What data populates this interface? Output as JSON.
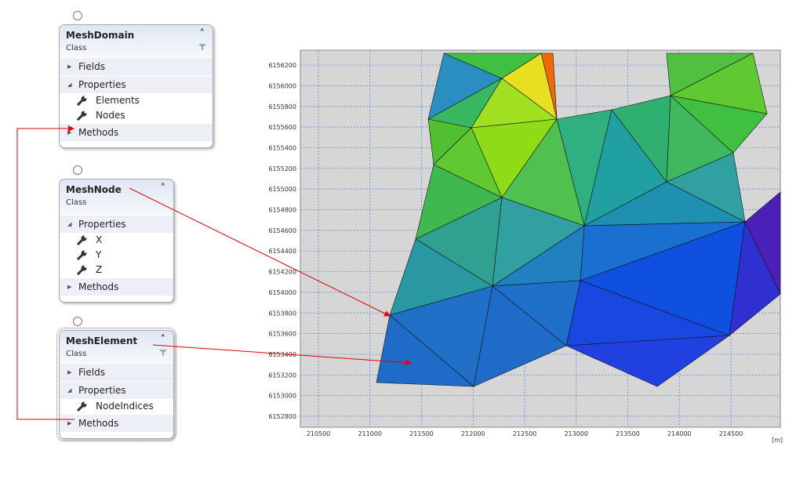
{
  "classes": [
    {
      "name": "MeshDomain",
      "kind": "Class",
      "sections": [
        {
          "name": "Fields"
        },
        {
          "name": "Properties",
          "members": [
            "Elements",
            "Nodes"
          ]
        },
        {
          "name": "Methods"
        }
      ]
    },
    {
      "name": "MeshNode",
      "kind": "Class",
      "sections": [
        {
          "name": "Properties",
          "members": [
            "X",
            "Y",
            "Z"
          ]
        },
        {
          "name": "Methods"
        }
      ]
    },
    {
      "name": "MeshElement",
      "kind": "Class",
      "sections": [
        {
          "name": "Fields"
        },
        {
          "name": "Properties",
          "members": [
            "NodeIndices"
          ]
        },
        {
          "name": "Methods"
        }
      ]
    }
  ],
  "plot": {
    "xticks": [
      210500,
      211000,
      211500,
      212000,
      212500,
      213000,
      213500,
      214000,
      214500
    ],
    "yticks": [
      6152800,
      6153000,
      6153200,
      6153400,
      6153600,
      6153800,
      6154000,
      6154200,
      6154400,
      6154600,
      6154800,
      6155000,
      6155200,
      6155400,
      6155600,
      6155800,
      6156000,
      6156200
    ],
    "unit": "[m]"
  }
}
